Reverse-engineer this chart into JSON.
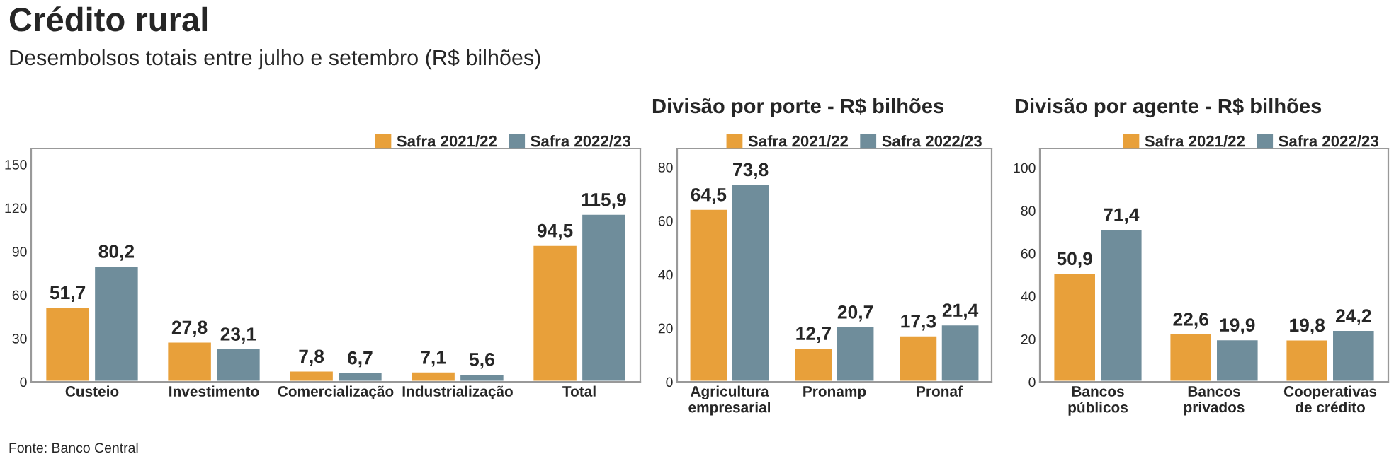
{
  "chart_data": [
    {
      "type": "bar",
      "title": "Crédito rural",
      "subtitle": "Desembolsos totais entre julho e setembro (R$ bilhões)",
      "categories": [
        "Custeio",
        "Investimento",
        "Comercialização",
        "Industrialização",
        "Total"
      ],
      "series": [
        {
          "name": "Safra 2021/22",
          "color": "#e8a03a",
          "values": [
            51.7,
            27.8,
            7.8,
            7.1,
            94.5
          ],
          "value_labels": [
            "51,7",
            "27,8",
            "7,8",
            "7,1",
            "94,5"
          ]
        },
        {
          "name": "Safra 2022/23",
          "color": "#6f8d9b",
          "values": [
            80.2,
            23.1,
            6.7,
            5.6,
            115.9
          ],
          "value_labels": [
            "80,2",
            "23,1",
            "6,7",
            "5,6",
            "115,9"
          ]
        }
      ],
      "ylim": [
        0,
        161
      ],
      "yticks": [
        0,
        30,
        60,
        90,
        120,
        150
      ],
      "legend": "top right",
      "grid": false,
      "annotations": [
        "Fonte: Banco Central"
      ]
    },
    {
      "type": "bar",
      "title": "Divisão por porte - R$ bilhões",
      "categories": [
        "Agricultura\nempresarial",
        "Pronamp",
        "Pronaf"
      ],
      "series": [
        {
          "name": "Safra 2021/22",
          "color": "#e8a03a",
          "values": [
            64.5,
            12.7,
            17.3
          ],
          "value_labels": [
            "64,5",
            "12,7",
            "17,3"
          ]
        },
        {
          "name": "Safra 2022/23",
          "color": "#6f8d9b",
          "values": [
            73.8,
            20.7,
            21.4
          ],
          "value_labels": [
            "73,8",
            "20,7",
            "21,4"
          ]
        }
      ],
      "ylim": [
        0,
        87
      ],
      "yticks": [
        0,
        20,
        40,
        60,
        80
      ],
      "legend": "top right",
      "grid": false
    },
    {
      "type": "bar",
      "title": "Divisão por agente - R$ bilhões",
      "categories": [
        "Bancos\npúblicos",
        "Bancos\nprivados",
        "Cooperativas\nde crédito"
      ],
      "series": [
        {
          "name": "Safra 2021/22",
          "color": "#e8a03a",
          "values": [
            50.9,
            22.6,
            19.8
          ],
          "value_labels": [
            "50,9",
            "22,6",
            "19,8"
          ]
        },
        {
          "name": "Safra 2022/23",
          "color": "#6f8d9b",
          "values": [
            71.4,
            19.9,
            24.2
          ],
          "value_labels": [
            "71,4",
            "19,9",
            "24,2"
          ]
        }
      ],
      "ylim": [
        0,
        109
      ],
      "yticks": [
        0,
        20,
        40,
        60,
        80,
        100
      ],
      "legend": "top right",
      "grid": false
    }
  ]
}
